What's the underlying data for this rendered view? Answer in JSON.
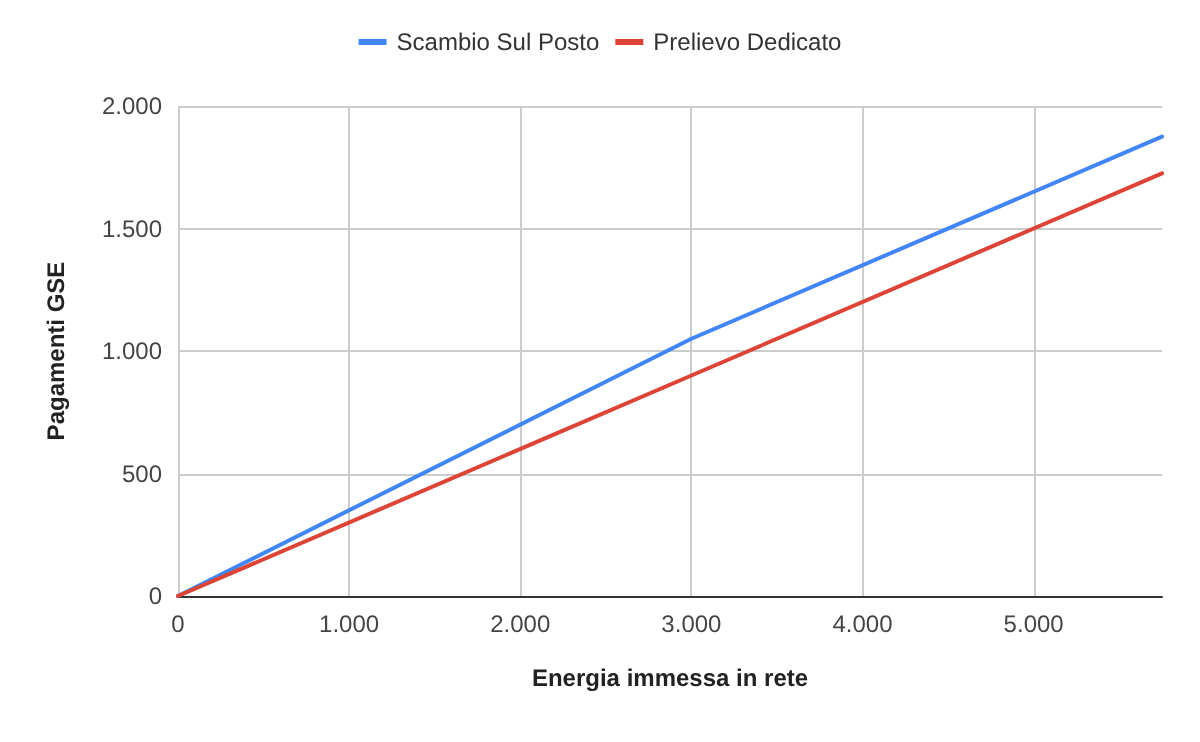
{
  "chart_data": {
    "type": "line",
    "xlabel": "Energia immessa in rete",
    "ylabel": "Pagamenti GSE",
    "x": [
      0,
      3000,
      5750
    ],
    "series": [
      {
        "name": "Scambio Sul Posto",
        "color": "#4285f4",
        "values": [
          0,
          1050,
          1875
        ]
      },
      {
        "name": "Prelievo Dedicato",
        "color": "#db4437",
        "values": [
          0,
          900,
          1725
        ]
      }
    ],
    "xlim": [
      0,
      5750
    ],
    "ylim": [
      0,
      2000
    ],
    "xticks": [
      0,
      {
        "value": 1000,
        "label": "1.000"
      },
      {
        "value": 2000,
        "label": "2.000"
      },
      {
        "value": 3000,
        "label": "3.000"
      },
      {
        "value": 4000,
        "label": "4.000"
      },
      {
        "value": 5000,
        "label": "5.000"
      }
    ],
    "yticks": [
      0,
      500,
      {
        "value": 1000,
        "label": "1.000"
      },
      {
        "value": 1500,
        "label": "1.500"
      },
      {
        "value": 2000,
        "label": "2.000"
      }
    ],
    "grid": true,
    "legend": "top",
    "marker": "none",
    "line_style": "solid"
  }
}
